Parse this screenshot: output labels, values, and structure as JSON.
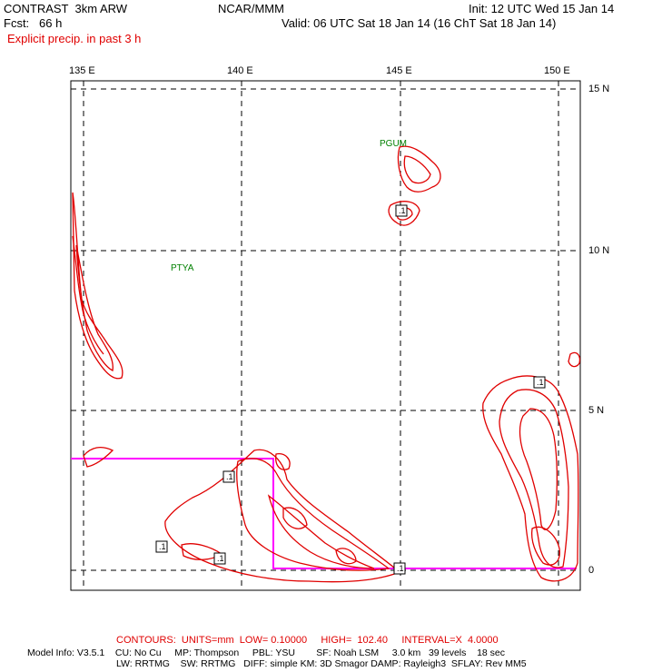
{
  "header": {
    "model_name": "CONTRAST  3km ARW",
    "center": "NCAR/MMM",
    "init": "Init: 12 UTC Wed 15 Jan 14",
    "fcst": "Fcst:   66 h",
    "valid": "Valid: 06 UTC Sat 18 Jan 14 (16 ChT Sat 18 Jan 14)",
    "field": "Explicit precip. in past 3 h"
  },
  "map": {
    "lon_labels": [
      "135 E",
      "140 E",
      "145 E",
      "150 E"
    ],
    "lat_labels": [
      "15 N",
      "10 N",
      "5 N",
      "0"
    ],
    "stations": [
      "PGUM",
      "PTYA"
    ],
    "contour_labels": [
      ".1",
      ".1",
      ".1",
      ".1",
      ".1",
      ".1"
    ],
    "colors": {
      "contour": "#e00000",
      "domain_box": "#ff00ff",
      "station": "#008000",
      "grid": "#000000"
    }
  },
  "footer": {
    "contours": "CONTOURS:  UNITS=mm  LOW= 0.10000     HIGH=  102.40     INTERVAL=X  4.0000",
    "model_info_1": "Model Info: V3.5.1    CU: No Cu     MP: Thompson     PBL: YSU        SF: Noah LSM     3.0 km   39 levels    18 sec",
    "model_info_2": "LW: RRTMG    SW: RRTMG   DIFF: simple KM: 3D Smagor DAMP: Rayleigh3  SFLAY: Rev MM5"
  }
}
